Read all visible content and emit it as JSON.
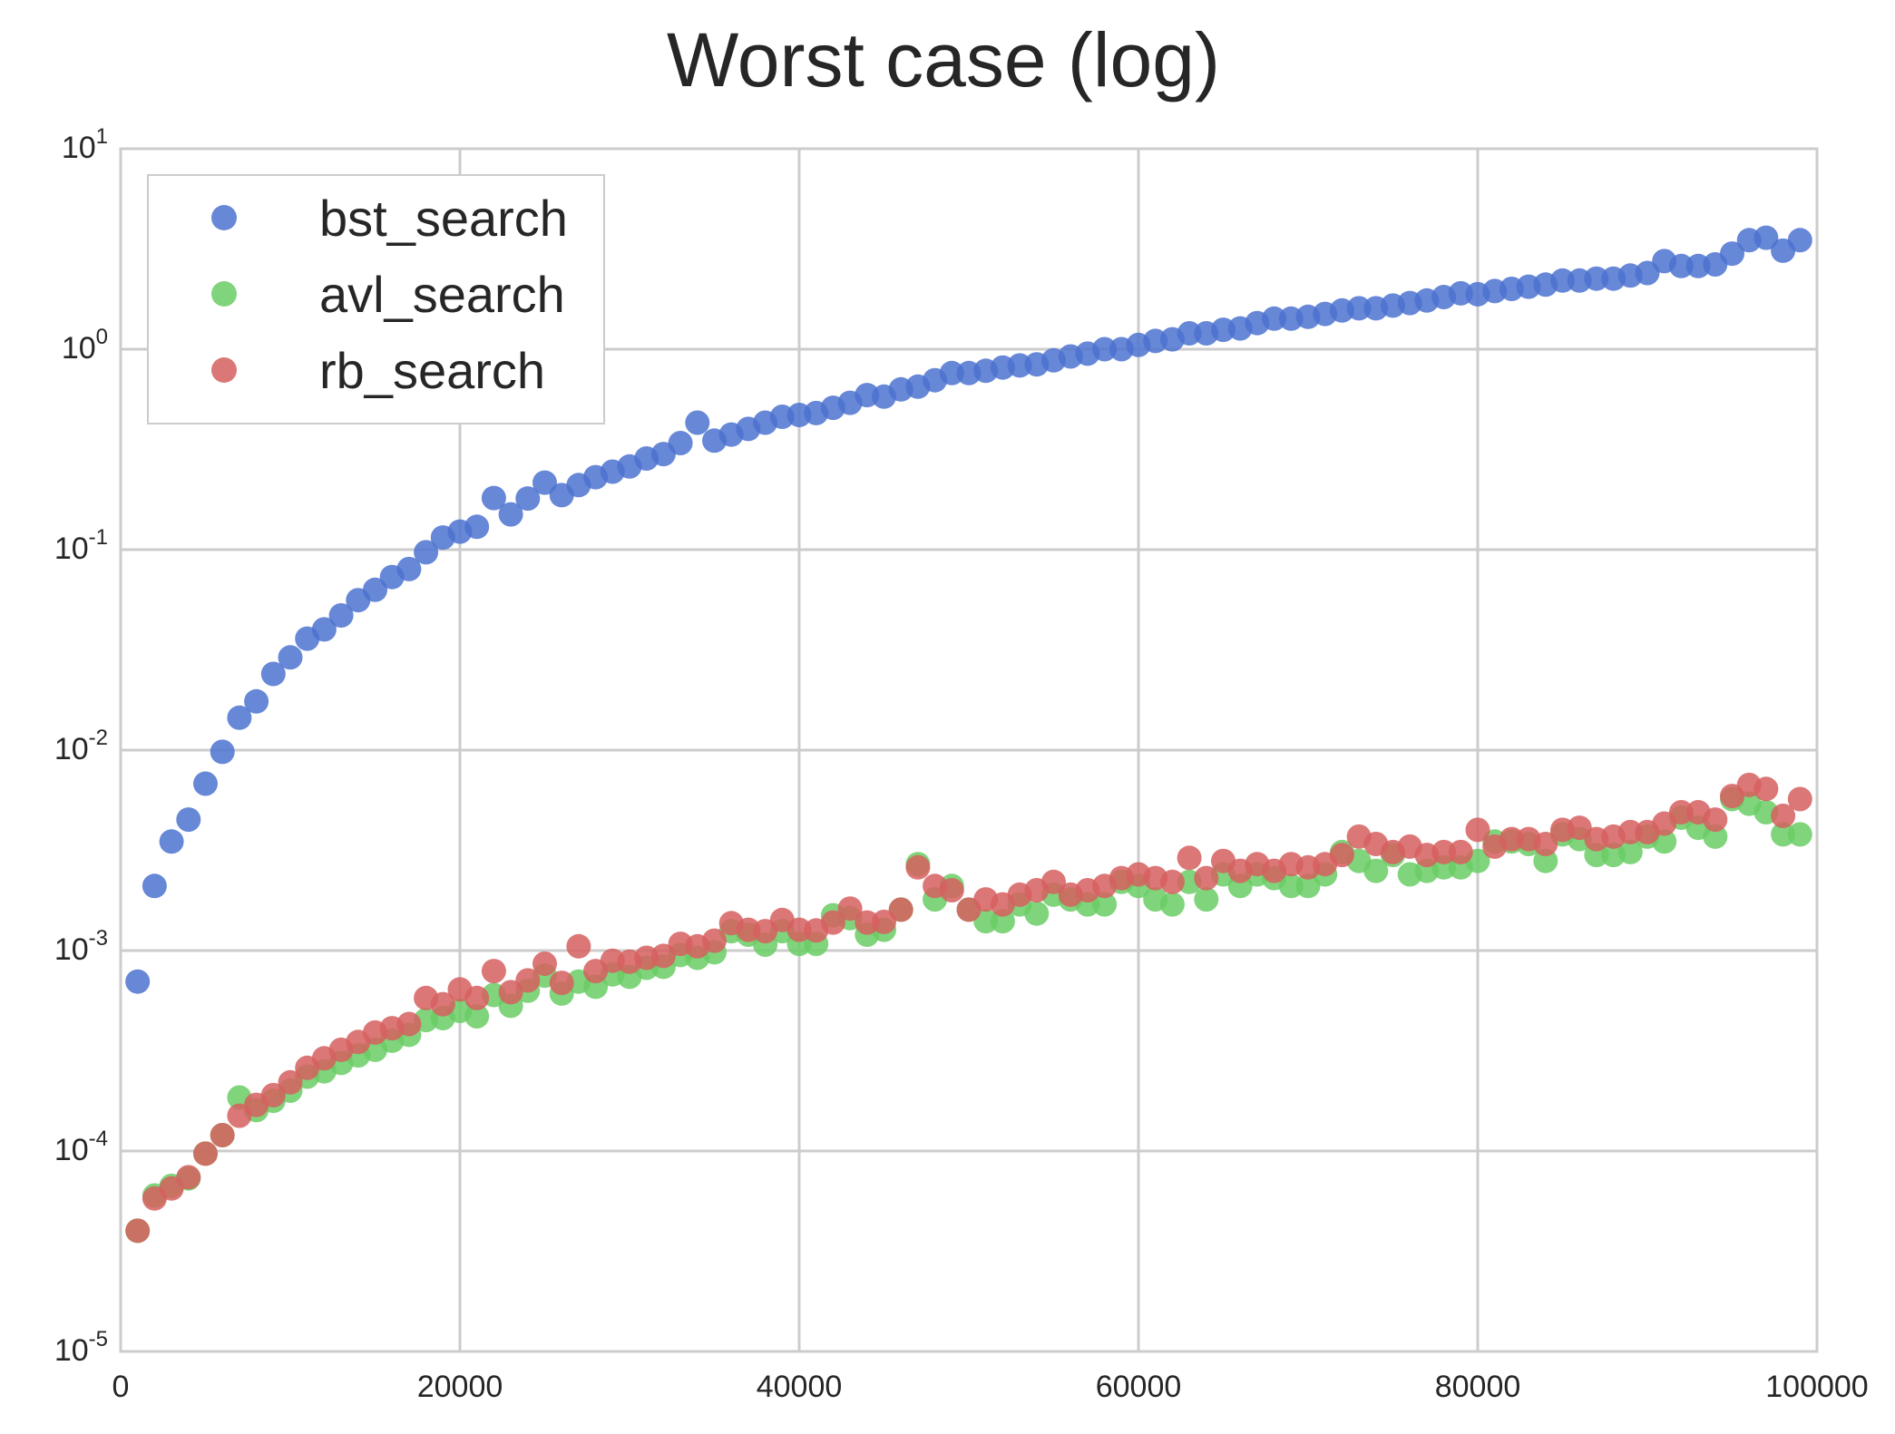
{
  "chart_data": {
    "type": "scatter",
    "title": "Worst case (log)",
    "xlabel": "",
    "ylabel": "",
    "xlim": [
      0,
      100000
    ],
    "ylim": [
      1e-05,
      10
    ],
    "yscale": "log",
    "grid": true,
    "legend_position": "top-left",
    "x_ticks": [
      "0",
      "20000",
      "40000",
      "60000",
      "80000",
      "100000"
    ],
    "x_tick_values": [
      0,
      20000,
      40000,
      60000,
      80000,
      100000
    ],
    "y_ticks": [
      {
        "base": "10",
        "exp": "1",
        "value": 10
      },
      {
        "base": "10",
        "exp": "0",
        "value": 1
      },
      {
        "base": "10",
        "exp": "-1",
        "value": 0.1
      },
      {
        "base": "10",
        "exp": "-2",
        "value": 0.01
      },
      {
        "base": "10",
        "exp": "-3",
        "value": 0.001
      },
      {
        "base": "10",
        "exp": "-4",
        "value": 0.0001
      },
      {
        "base": "10",
        "exp": "-5",
        "value": 1e-05
      }
    ],
    "x": [
      1000,
      2000,
      3000,
      4000,
      5000,
      6000,
      7000,
      8000,
      9000,
      10000,
      11000,
      12000,
      13000,
      14000,
      15000,
      16000,
      17000,
      18000,
      19000,
      20000,
      21000,
      22000,
      23000,
      24000,
      25000,
      26000,
      27000,
      28000,
      29000,
      30000,
      31000,
      32000,
      33000,
      34000,
      35000,
      36000,
      37000,
      38000,
      39000,
      40000,
      41000,
      42000,
      43000,
      44000,
      45000,
      46000,
      47000,
      48000,
      49000,
      50000,
      51000,
      52000,
      53000,
      54000,
      55000,
      56000,
      57000,
      58000,
      59000,
      60000,
      61000,
      62000,
      63000,
      64000,
      65000,
      66000,
      67000,
      68000,
      69000,
      70000,
      71000,
      72000,
      73000,
      74000,
      75000,
      76000,
      77000,
      78000,
      79000,
      80000,
      81000,
      82000,
      83000,
      84000,
      85000,
      86000,
      87000,
      88000,
      89000,
      90000,
      91000,
      92000,
      93000,
      94000,
      95000,
      96000,
      97000,
      98000,
      99000
    ],
    "series": [
      {
        "name": "bst_search",
        "color": "#4c72d0",
        "values": [
          0.0007,
          0.0021,
          0.0035,
          0.0045,
          0.0068,
          0.0098,
          0.0145,
          0.0175,
          0.024,
          0.029,
          0.036,
          0.04,
          0.047,
          0.056,
          0.063,
          0.073,
          0.08,
          0.097,
          0.115,
          0.123,
          0.13,
          0.181,
          0.15,
          0.18,
          0.216,
          0.187,
          0.21,
          0.23,
          0.245,
          0.26,
          0.285,
          0.3,
          0.34,
          0.43,
          0.35,
          0.375,
          0.4,
          0.43,
          0.46,
          0.47,
          0.48,
          0.51,
          0.54,
          0.59,
          0.58,
          0.63,
          0.65,
          0.7,
          0.76,
          0.76,
          0.78,
          0.81,
          0.83,
          0.84,
          0.88,
          0.92,
          0.95,
          1.0,
          1.0,
          1.05,
          1.1,
          1.12,
          1.2,
          1.2,
          1.25,
          1.27,
          1.35,
          1.42,
          1.42,
          1.45,
          1.5,
          1.56,
          1.6,
          1.6,
          1.65,
          1.7,
          1.75,
          1.82,
          1.9,
          1.88,
          1.95,
          2.0,
          2.05,
          2.1,
          2.2,
          2.2,
          2.25,
          2.25,
          2.33,
          2.4,
          2.75,
          2.6,
          2.6,
          2.65,
          3.0,
          3.5,
          3.6,
          3.1,
          3.5
        ]
      },
      {
        "name": "avl_search",
        "color": "#6acc65",
        "values": [
          4e-05,
          6e-05,
          6.7e-05,
          7.3e-05,
          9.7e-05,
          0.00012,
          0.000185,
          0.00016,
          0.000178,
          0.0002,
          0.000235,
          0.00025,
          0.000275,
          0.0003,
          0.00032,
          0.000355,
          0.00038,
          0.00045,
          0.00046,
          0.0005,
          0.00047,
          0.0006,
          0.00053,
          0.00063,
          0.00075,
          0.00061,
          0.0007,
          0.00066,
          0.00076,
          0.00074,
          0.00082,
          0.00083,
          0.00095,
          0.00092,
          0.00098,
          0.00125,
          0.0012,
          0.00107,
          0.00125,
          0.00108,
          0.00108,
          0.0015,
          0.00145,
          0.0012,
          0.00127,
          0.0016,
          0.0027,
          0.0018,
          0.0021,
          0.0016,
          0.0014,
          0.0014,
          0.0017,
          0.00153,
          0.0019,
          0.0018,
          0.0017,
          0.0017,
          0.0022,
          0.0021,
          0.0018,
          0.0017,
          0.0022,
          0.0018,
          0.0024,
          0.0021,
          0.0024,
          0.0023,
          0.0021,
          0.0021,
          0.0024,
          0.0031,
          0.0028,
          0.0025,
          0.003,
          0.0024,
          0.0025,
          0.0026,
          0.0026,
          0.0028,
          0.0035,
          0.0035,
          0.0034,
          0.0028,
          0.0038,
          0.0036,
          0.003,
          0.003,
          0.0031,
          0.0037,
          0.0035,
          0.0046,
          0.0041,
          0.0037,
          0.0057,
          0.0054,
          0.0049,
          0.0038,
          0.0038
        ]
      },
      {
        "name": "rb_search",
        "color": "#d65f5f",
        "values": [
          4e-05,
          5.8e-05,
          6.5e-05,
          7.4e-05,
          9.7e-05,
          0.00012,
          0.00015,
          0.00017,
          0.00019,
          0.00022,
          0.00026,
          0.00029,
          0.00032,
          0.00035,
          0.00039,
          0.00041,
          0.00043,
          0.00058,
          0.00054,
          0.00064,
          0.00058,
          0.00079,
          0.00062,
          0.00071,
          0.00086,
          0.00069,
          0.00105,
          0.00079,
          0.00089,
          0.00088,
          0.00092,
          0.00094,
          0.00108,
          0.00105,
          0.00112,
          0.00137,
          0.00127,
          0.00125,
          0.00142,
          0.00127,
          0.00126,
          0.00138,
          0.00162,
          0.00138,
          0.00139,
          0.0016,
          0.0026,
          0.0021,
          0.002,
          0.0016,
          0.0018,
          0.0017,
          0.0019,
          0.002,
          0.0022,
          0.0019,
          0.002,
          0.0021,
          0.0023,
          0.0024,
          0.0023,
          0.0022,
          0.0029,
          0.0023,
          0.0028,
          0.0025,
          0.0027,
          0.0025,
          0.0027,
          0.0026,
          0.0027,
          0.003,
          0.0037,
          0.0034,
          0.0031,
          0.0033,
          0.003,
          0.0031,
          0.0031,
          0.004,
          0.0033,
          0.0036,
          0.0036,
          0.0034,
          0.004,
          0.0041,
          0.0036,
          0.0037,
          0.0039,
          0.0039,
          0.0043,
          0.0049,
          0.0049,
          0.0045,
          0.0059,
          0.0067,
          0.0064,
          0.0047,
          0.0057
        ]
      }
    ]
  }
}
